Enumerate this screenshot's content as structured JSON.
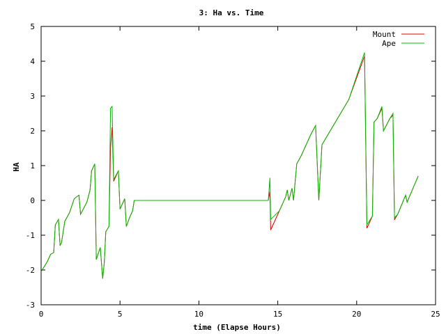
{
  "chart_data": {
    "type": "line",
    "title": "3: Ha vs. Time",
    "xlabel": "time (Elapse Hours)",
    "ylabel": "HA",
    "xlim": [
      0,
      25
    ],
    "ylim": [
      -3,
      5
    ],
    "x_ticks": [
      0,
      5,
      10,
      15,
      20,
      25
    ],
    "y_ticks": [
      -3,
      -2,
      -1,
      0,
      1,
      2,
      3,
      4,
      5
    ],
    "grid": false,
    "legend_position": "top-right",
    "series": [
      {
        "name": "Mount",
        "color": "#dd0000",
        "points": [
          [
            0,
            -2.05
          ],
          [
            0.4,
            -1.75
          ],
          [
            0.6,
            -1.55
          ],
          [
            0.8,
            -1.5
          ],
          [
            0.9,
            -0.7
          ],
          [
            1.1,
            -0.55
          ],
          [
            1.2,
            -1.3
          ],
          [
            1.3,
            -1.2
          ],
          [
            1.5,
            -0.6
          ],
          [
            1.8,
            -0.35
          ],
          [
            2.1,
            0.05
          ],
          [
            2.4,
            0.15
          ],
          [
            2.5,
            -0.4
          ],
          [
            2.9,
            -0.05
          ],
          [
            3.1,
            0.3
          ],
          [
            3.2,
            0.85
          ],
          [
            3.4,
            1.05
          ],
          [
            3.5,
            -1.7
          ],
          [
            3.75,
            -1.35
          ],
          [
            3.9,
            -2.25
          ],
          [
            4.0,
            -1.8
          ],
          [
            4.1,
            -0.9
          ],
          [
            4.3,
            -0.75
          ],
          [
            4.4,
            1.5
          ],
          [
            4.5,
            2.1
          ],
          [
            4.6,
            0.55
          ],
          [
            4.9,
            0.85
          ],
          [
            5.0,
            -0.25
          ],
          [
            5.3,
            0.05
          ],
          [
            5.4,
            -0.75
          ],
          [
            5.6,
            -0.5
          ],
          [
            5.8,
            -0.3
          ],
          [
            5.9,
            0.0
          ],
          [
            14.4,
            0.0
          ],
          [
            14.5,
            0.25
          ],
          [
            14.55,
            -0.85
          ],
          [
            15.1,
            -0.3
          ],
          [
            15.5,
            0.1
          ],
          [
            15.6,
            0.3
          ],
          [
            15.7,
            0.0
          ],
          [
            15.9,
            0.35
          ],
          [
            16.0,
            0.0
          ],
          [
            16.2,
            1.05
          ],
          [
            16.5,
            1.3
          ],
          [
            17.1,
            1.9
          ],
          [
            17.4,
            2.15
          ],
          [
            17.6,
            0.0
          ],
          [
            17.8,
            1.6
          ],
          [
            19.5,
            2.9
          ],
          [
            20.5,
            4.15
          ],
          [
            20.65,
            -0.8
          ],
          [
            21.0,
            -0.45
          ],
          [
            21.1,
            2.25
          ],
          [
            21.3,
            2.35
          ],
          [
            21.6,
            2.65
          ],
          [
            21.7,
            2.0
          ],
          [
            22.1,
            2.35
          ],
          [
            22.3,
            2.45
          ],
          [
            22.4,
            -0.55
          ],
          [
            22.6,
            -0.4
          ],
          [
            23.1,
            0.15
          ],
          [
            23.2,
            -0.05
          ],
          [
            23.9,
            0.7
          ]
        ]
      },
      {
        "name": "Ape",
        "color": "#00bb00",
        "points": [
          [
            0,
            -2.05
          ],
          [
            0.4,
            -1.75
          ],
          [
            0.6,
            -1.55
          ],
          [
            0.8,
            -1.5
          ],
          [
            0.9,
            -0.7
          ],
          [
            1.1,
            -0.55
          ],
          [
            1.2,
            -1.3
          ],
          [
            1.3,
            -1.2
          ],
          [
            1.5,
            -0.6
          ],
          [
            1.8,
            -0.35
          ],
          [
            2.1,
            0.05
          ],
          [
            2.4,
            0.15
          ],
          [
            2.5,
            -0.4
          ],
          [
            2.9,
            -0.05
          ],
          [
            3.1,
            0.3
          ],
          [
            3.2,
            0.85
          ],
          [
            3.4,
            1.05
          ],
          [
            3.5,
            -1.7
          ],
          [
            3.75,
            -1.35
          ],
          [
            3.9,
            -2.25
          ],
          [
            4.0,
            -1.8
          ],
          [
            4.1,
            -0.9
          ],
          [
            4.3,
            -0.75
          ],
          [
            4.4,
            2.65
          ],
          [
            4.5,
            2.7
          ],
          [
            4.6,
            0.6
          ],
          [
            4.9,
            0.85
          ],
          [
            5.0,
            -0.25
          ],
          [
            5.3,
            0.05
          ],
          [
            5.4,
            -0.75
          ],
          [
            5.6,
            -0.5
          ],
          [
            5.8,
            -0.3
          ],
          [
            5.9,
            0.0
          ],
          [
            14.4,
            0.0
          ],
          [
            14.5,
            0.65
          ],
          [
            14.55,
            -0.55
          ],
          [
            15.1,
            -0.3
          ],
          [
            15.5,
            0.1
          ],
          [
            15.6,
            0.3
          ],
          [
            15.7,
            0.0
          ],
          [
            15.9,
            0.35
          ],
          [
            16.0,
            0.0
          ],
          [
            16.2,
            1.05
          ],
          [
            16.5,
            1.3
          ],
          [
            17.1,
            1.9
          ],
          [
            17.4,
            2.15
          ],
          [
            17.6,
            0.0
          ],
          [
            17.8,
            1.6
          ],
          [
            19.5,
            2.9
          ],
          [
            20.5,
            4.25
          ],
          [
            20.65,
            -0.7
          ],
          [
            21.0,
            -0.45
          ],
          [
            21.1,
            2.25
          ],
          [
            21.3,
            2.35
          ],
          [
            21.6,
            2.7
          ],
          [
            21.7,
            2.0
          ],
          [
            22.1,
            2.35
          ],
          [
            22.3,
            2.5
          ],
          [
            22.4,
            -0.5
          ],
          [
            22.6,
            -0.4
          ],
          [
            23.1,
            0.15
          ],
          [
            23.2,
            -0.05
          ],
          [
            23.9,
            0.7
          ]
        ]
      }
    ]
  }
}
